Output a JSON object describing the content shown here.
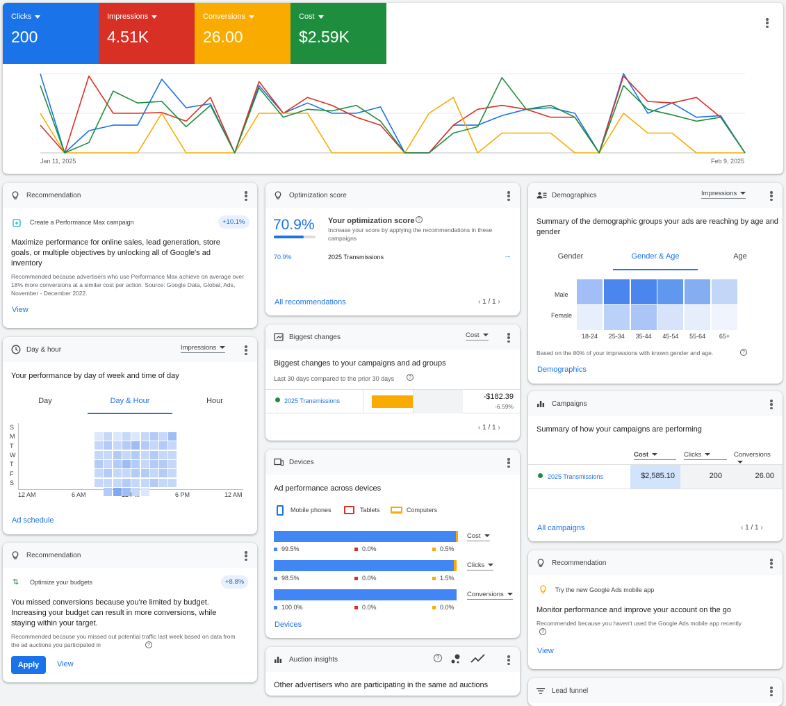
{
  "metrics": [
    {
      "label": "Clicks",
      "value": "200",
      "color": "#1a73e8"
    },
    {
      "label": "Impressions",
      "value": "4.51K",
      "color": "#d93025"
    },
    {
      "label": "Conversions",
      "value": "26.00",
      "color": "#f9ab00"
    },
    {
      "label": "Cost",
      "value": "$2.59K",
      "color": "#1e8e3e"
    }
  ],
  "chart": {
    "start_label": "Jan 11, 2025",
    "end_label": "Feb 9, 2025"
  },
  "chart_data": {
    "type": "line",
    "title": "",
    "x_start": "Jan 11, 2025",
    "x_end": "Feb 9, 2025",
    "ylim": [
      0,
      100
    ],
    "grid": true,
    "series": [
      {
        "name": "Clicks",
        "color": "#1a73e8",
        "values": [
          100,
          0,
          28,
          35,
          35,
          93,
          57,
          62,
          0,
          85,
          50,
          63,
          50,
          50,
          58,
          0,
          0,
          35,
          35,
          47,
          55,
          57,
          50,
          0,
          100,
          50,
          63,
          45,
          47,
          0
        ]
      },
      {
        "name": "Impressions",
        "color": "#d93025",
        "values": [
          35,
          0,
          97,
          50,
          50,
          51,
          40,
          70,
          0,
          90,
          50,
          70,
          60,
          45,
          35,
          0,
          0,
          35,
          55,
          60,
          55,
          45,
          45,
          0,
          97,
          65,
          63,
          70,
          45,
          0
        ],
        "_": ""
      },
      {
        "name": "Conversions",
        "color": "#f9ab00",
        "values": [
          50,
          0,
          0,
          0,
          0,
          50,
          0,
          0,
          0,
          50,
          50,
          50,
          0,
          0,
          0,
          0,
          50,
          70,
          0,
          25,
          25,
          25,
          0,
          0,
          50,
          25,
          25,
          0,
          0,
          0
        ]
      },
      {
        "name": "Cost",
        "color": "#1e8e3e",
        "values": [
          85,
          0,
          13,
          78,
          63,
          65,
          33,
          60,
          0,
          82,
          45,
          55,
          53,
          60,
          40,
          0,
          0,
          25,
          33,
          95,
          55,
          60,
          45,
          0,
          85,
          55,
          48,
          40,
          45,
          0
        ]
      }
    ]
  },
  "recommendation1": {
    "header": "Recommendation",
    "item": "Create a Performance Max campaign",
    "badge": "+10.1%",
    "title": "Maximize performance for online sales, lead generation, store goals, or multiple objectives by unlocking all of Google's ad inventory",
    "note": "Recommended because advertisers who use Performance Max achieve on average over 18% more conversions at a similar cost per action. Source: Google Data, Global, Ads, November - December 2022.",
    "link": "View"
  },
  "optimization": {
    "header": "Optimization score",
    "score": "70.9%",
    "score_fraction": 0.709,
    "title": "Your optimization score",
    "desc": "Increase your score by applying the recommendations in these campaigns",
    "row_score": "70.9%",
    "row_campaign": "2025 Transmissions",
    "link": "All recommendations",
    "pager": "1 / 1"
  },
  "demographics": {
    "header": "Demographics",
    "dropdown": "Impressions",
    "title": "Summary of the demographic groups your ads are reaching by age and gender",
    "tabs": [
      "Gender",
      "Gender & Age",
      "Age"
    ],
    "rows": [
      "Male",
      "Female"
    ],
    "ages": [
      "18-24",
      "25-34",
      "35-44",
      "45-54",
      "55-64",
      "65+"
    ],
    "male": [
      "#a1bff6",
      "#4a86ed",
      "#4a86ed",
      "#6098ef",
      "#84adf2",
      "#c2d6f8"
    ],
    "female": [
      "#e8effc",
      "#bcd1f8",
      "#aac5f6",
      "#d6e3fa",
      "#e6eefc",
      "#f0f5fd"
    ],
    "note": "Based on the 80% of your impressions with known gender and age.",
    "link": "Demographics"
  },
  "dayhour": {
    "header": "Day & hour",
    "dropdown": "Impressions",
    "title": "Your performance by day of week and time of day",
    "tabs": [
      "Day",
      "Day & Hour",
      "Hour"
    ],
    "days": [
      "S",
      "M",
      "T",
      "W",
      "T",
      "F",
      "S"
    ],
    "hours": [
      "12 AM",
      "6 AM",
      "12 PM",
      "6 PM",
      "12 AM"
    ],
    "link": "Ad schedule"
  },
  "biggest": {
    "header": "Biggest changes",
    "dropdown": "Cost",
    "title": "Biggest changes to your campaigns and ad groups",
    "subtitle": "Last 30 days compared to the prior 30 days",
    "campaign": "2025 Transmissions",
    "value": "-$182.39",
    "pct": "-6.59%",
    "pager": "1 / 1"
  },
  "campaigns": {
    "header": "Campaigns",
    "title": "Summary of how your campaigns are performing",
    "cols": [
      "Cost",
      "Clicks",
      "Conversions"
    ],
    "row": {
      "name": "2025 Transmissions",
      "cost": "$2,585.10",
      "clicks": "200",
      "conversions": "26.00"
    },
    "link": "All campaigns",
    "pager": "1 / 1"
  },
  "devices": {
    "header": "Devices",
    "title": "Ad performance across devices",
    "legend": [
      "Mobile phones",
      "Tablets",
      "Computers"
    ],
    "rows": [
      {
        "dropdown": "Cost",
        "mobile": "99.5%",
        "tablets": "0.0%",
        "computers": "0.5%",
        "m": 99.5,
        "c": 0.5
      },
      {
        "dropdown": "Clicks",
        "mobile": "98.5%",
        "tablets": "0.0%",
        "computers": "1.5%",
        "m": 98.5,
        "c": 1.5
      },
      {
        "dropdown": "Conversions",
        "mobile": "100.0%",
        "tablets": "0.0%",
        "computers": "0.0%",
        "m": 100,
        "c": 0
      }
    ],
    "link": "Devices"
  },
  "recommendation2": {
    "header": "Recommendation",
    "item": "Optimize your budgets",
    "badge": "+8.8%",
    "title": "You missed conversions because you're limited by budget. Increasing your budget can result in more conversions, while staying within your target.",
    "note": "Recommended because you missed out potential traffic last week based on data from the ad auctions you participated in",
    "apply": "Apply",
    "view": "View"
  },
  "recommendation3": {
    "header": "Recommendation",
    "item": "Try the new Google Ads mobile app",
    "title": "Monitor performance and improve your account on the go",
    "note": "Recommended because you haven't used the Google Ads mobile app recently",
    "link": "View"
  },
  "auction": {
    "header": "Auction insights",
    "title": "Other advertisers who are participating in the same ad auctions"
  },
  "leadfunnel": {
    "header": "Lead funnel"
  }
}
